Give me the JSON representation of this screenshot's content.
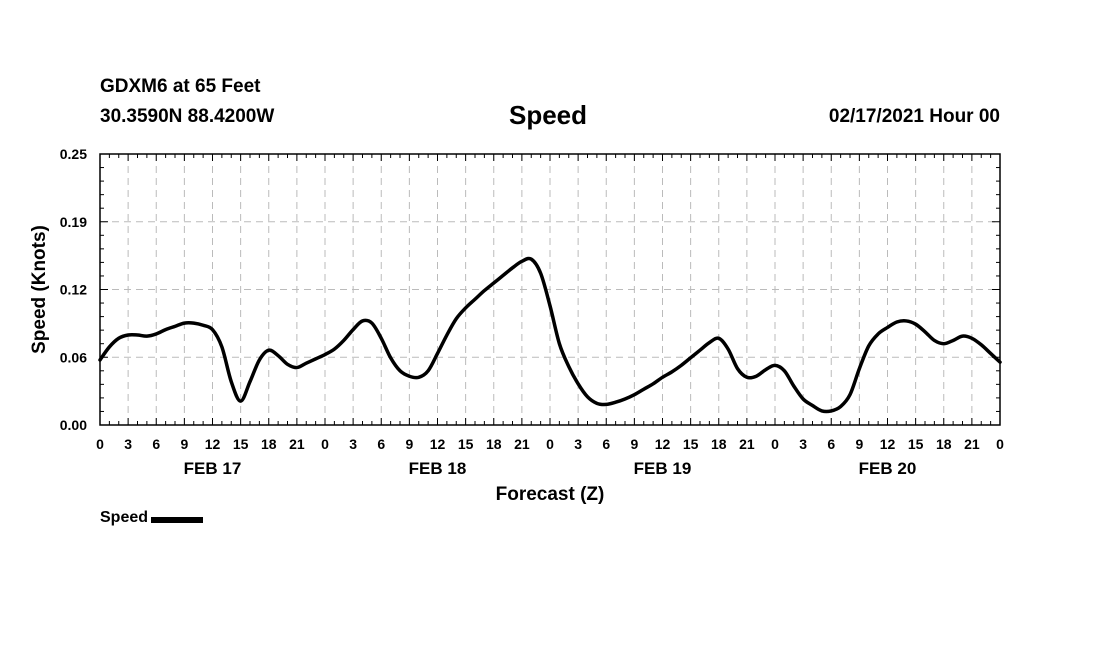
{
  "header": {
    "station": "GDXM6 at 65 Feet",
    "coords": "30.3590N 88.4200W",
    "title": "Speed",
    "run": "02/17/2021 Hour 00"
  },
  "legend": {
    "label": "Speed"
  },
  "colors": {
    "line": "#000000",
    "grid": "#bbbbbb"
  },
  "chart_data": {
    "type": "line",
    "title": "Speed",
    "xlabel": "Forecast (Z)",
    "ylabel": "Speed (Knots)",
    "ylim": [
      0,
      0.25
    ],
    "yticks": [
      "0.00",
      "0.06",
      "0.12",
      "0.19",
      "0.25"
    ],
    "xlim_hours": [
      0,
      96
    ],
    "xtick_labels": [
      "0",
      "3",
      "6",
      "9",
      "12",
      "15",
      "18",
      "21",
      "0",
      "3",
      "6",
      "9",
      "12",
      "15",
      "18",
      "21",
      "0",
      "3",
      "6",
      "9",
      "12",
      "15",
      "18",
      "21",
      "0",
      "3",
      "6",
      "9",
      "12",
      "15",
      "18",
      "21",
      "0"
    ],
    "day_labels": [
      "FEB 17",
      "FEB 18",
      "FEB 19",
      "FEB 20"
    ],
    "grid": true,
    "series": [
      {
        "name": "Speed",
        "x": [
          0,
          1,
          2,
          3,
          4,
          5,
          6,
          7,
          8,
          9,
          10,
          11,
          12,
          13,
          14,
          15,
          16,
          17,
          18,
          19,
          20,
          21,
          22,
          23,
          24,
          25,
          26,
          27,
          28,
          29,
          30,
          31,
          32,
          33,
          34,
          35,
          36,
          37,
          38,
          39,
          40,
          41,
          42,
          43,
          44,
          45,
          46,
          47,
          48,
          49,
          50,
          51,
          52,
          53,
          54,
          55,
          56,
          57,
          58,
          59,
          60,
          61,
          62,
          63,
          64,
          65,
          66,
          67,
          68,
          69,
          70,
          71,
          72,
          73,
          74,
          75,
          76,
          77,
          78,
          79,
          80,
          81,
          82,
          83,
          84,
          85,
          86,
          87,
          88,
          89,
          90,
          91,
          92,
          93,
          94,
          95,
          96
        ],
        "values": [
          0.06,
          0.072,
          0.08,
          0.083,
          0.083,
          0.082,
          0.084,
          0.088,
          0.091,
          0.094,
          0.094,
          0.092,
          0.088,
          0.072,
          0.04,
          0.022,
          0.04,
          0.06,
          0.069,
          0.064,
          0.056,
          0.053,
          0.057,
          0.061,
          0.065,
          0.07,
          0.078,
          0.088,
          0.096,
          0.094,
          0.08,
          0.062,
          0.05,
          0.045,
          0.044,
          0.05,
          0.066,
          0.083,
          0.098,
          0.108,
          0.116,
          0.124,
          0.131,
          0.138,
          0.145,
          0.151,
          0.153,
          0.14,
          0.11,
          0.075,
          0.054,
          0.038,
          0.026,
          0.02,
          0.019,
          0.021,
          0.024,
          0.028,
          0.033,
          0.038,
          0.044,
          0.049,
          0.055,
          0.062,
          0.069,
          0.076,
          0.08,
          0.07,
          0.052,
          0.044,
          0.045,
          0.051,
          0.055,
          0.05,
          0.036,
          0.024,
          0.018,
          0.013,
          0.013,
          0.017,
          0.028,
          0.052,
          0.073,
          0.084,
          0.09,
          0.095,
          0.096,
          0.093,
          0.086,
          0.078,
          0.075,
          0.078,
          0.082,
          0.08,
          0.074,
          0.066,
          0.058
        ]
      }
    ]
  }
}
